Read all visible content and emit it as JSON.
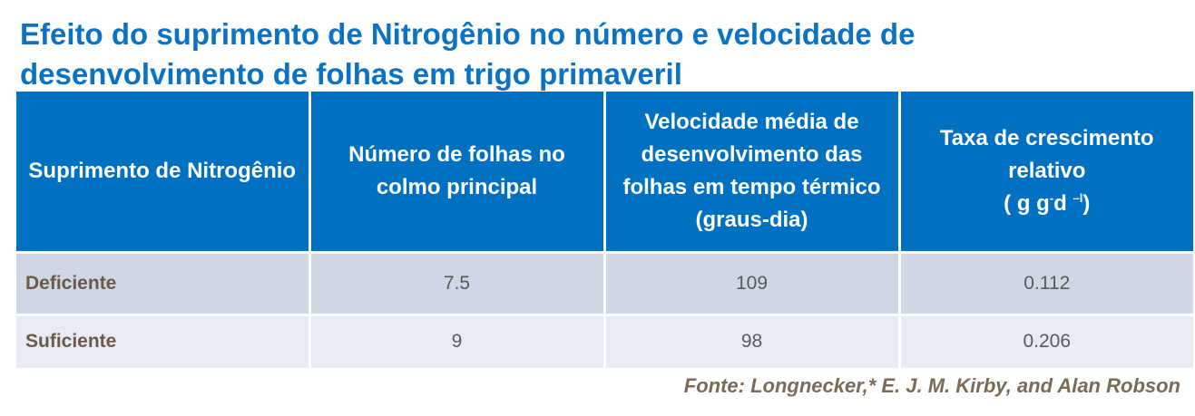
{
  "title": {
    "line1": "Efeito do suprimento de Nitrogênio no número e velocidade de",
    "line2": "desenvolvimento de folhas em trigo primaveril"
  },
  "table": {
    "headers": [
      "Suprimento de Nitrogênio",
      "Número de folhas no colmo principal",
      "Velocidade média de desenvolvimento das folhas em tempo térmico (graus-dia)"
    ],
    "header4": {
      "line1": "Taxa de crescimento relativo",
      "unit_open": "( g g",
      "unit_sup1": "-",
      "unit_mid": "d ",
      "unit_sup2": "–l",
      "unit_close": ")"
    },
    "rows": [
      [
        "Deficiente",
        "7.5",
        "109",
        "0.112"
      ],
      [
        "Suficiente",
        "9",
        "98",
        "0.206"
      ]
    ]
  },
  "source": "Fonte: Longnecker,* E. J. M. Kirby, and Alan Robson"
}
